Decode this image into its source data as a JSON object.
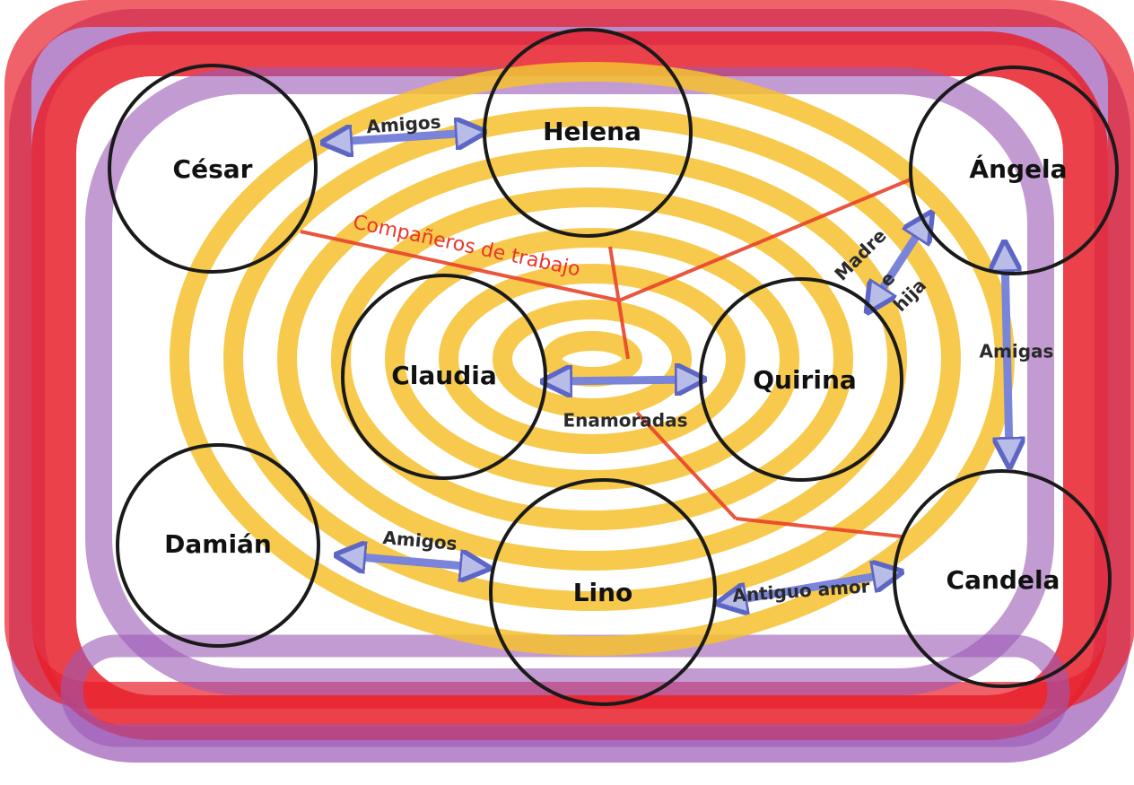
{
  "nodes": [
    {
      "label": "César"
    },
    {
      "label": "Helena"
    },
    {
      "label": "Ángela"
    },
    {
      "label": "Claudia"
    },
    {
      "label": "Quirina"
    },
    {
      "label": "Damián"
    },
    {
      "label": "Lino"
    },
    {
      "label": "Candela"
    }
  ],
  "edges": [
    {
      "label": "Amigos"
    },
    {
      "label": "Compañeros de trabajo"
    },
    {
      "lines": [
        "Madre",
        "e",
        "hija"
      ]
    },
    {
      "label": "Amigas"
    },
    {
      "label": "Enamoradas"
    },
    {
      "label": "Amigos"
    },
    {
      "label": "Antiguo amor"
    }
  ]
}
